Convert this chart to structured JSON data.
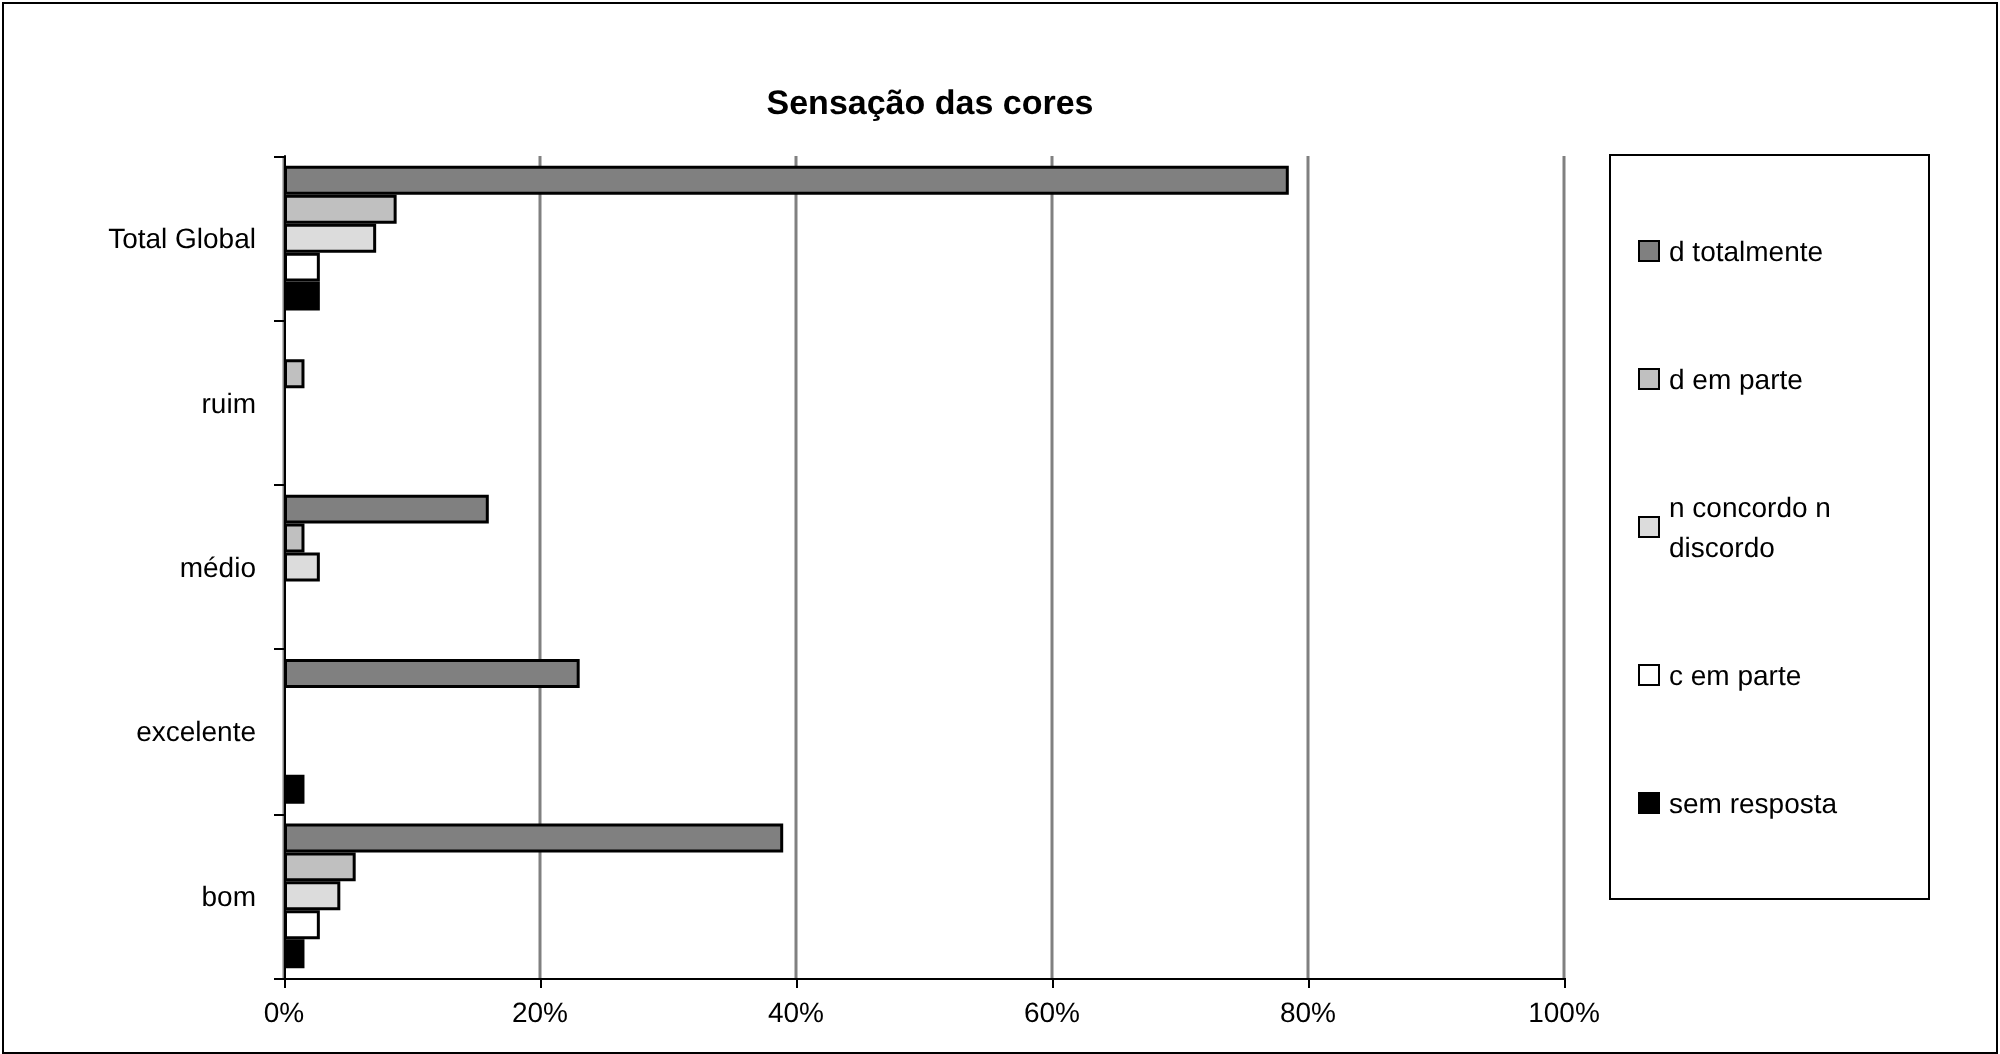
{
  "chart_data": {
    "type": "bar",
    "orientation": "horizontal",
    "title": "Sensação das cores",
    "categories": [
      "Total Global",
      "ruim",
      "médio",
      "excelente",
      "bom"
    ],
    "series": [
      {
        "name": "d totalmente",
        "color": "#808080",
        "values": [
          78.5,
          null,
          16,
          23.1,
          39
        ]
      },
      {
        "name": "d em parte",
        "color": "#c0c0c0",
        "values": [
          8.8,
          1.6,
          1.6,
          null,
          5.6
        ]
      },
      {
        "name": "n concordo n discordo",
        "color": "#dcdcdc",
        "values": [
          7.2,
          null,
          2.8,
          null,
          4.4
        ]
      },
      {
        "name": "c em parte",
        "color": "#ffffff",
        "values": [
          2.8,
          null,
          null,
          null,
          2.8
        ]
      },
      {
        "name": "sem resposta",
        "color": "#000000",
        "values": [
          2.8,
          null,
          null,
          1.6,
          1.6
        ]
      }
    ],
    "xlim": [
      0,
      100
    ],
    "xticks": [
      {
        "value": 0,
        "label": "0%"
      },
      {
        "value": 20,
        "label": "20%"
      },
      {
        "value": 40,
        "label": "40%"
      },
      {
        "value": 60,
        "label": "60%"
      },
      {
        "value": 80,
        "label": "80%"
      },
      {
        "value": 100,
        "label": "100%"
      }
    ],
    "grid": "x",
    "legend": "right"
  }
}
